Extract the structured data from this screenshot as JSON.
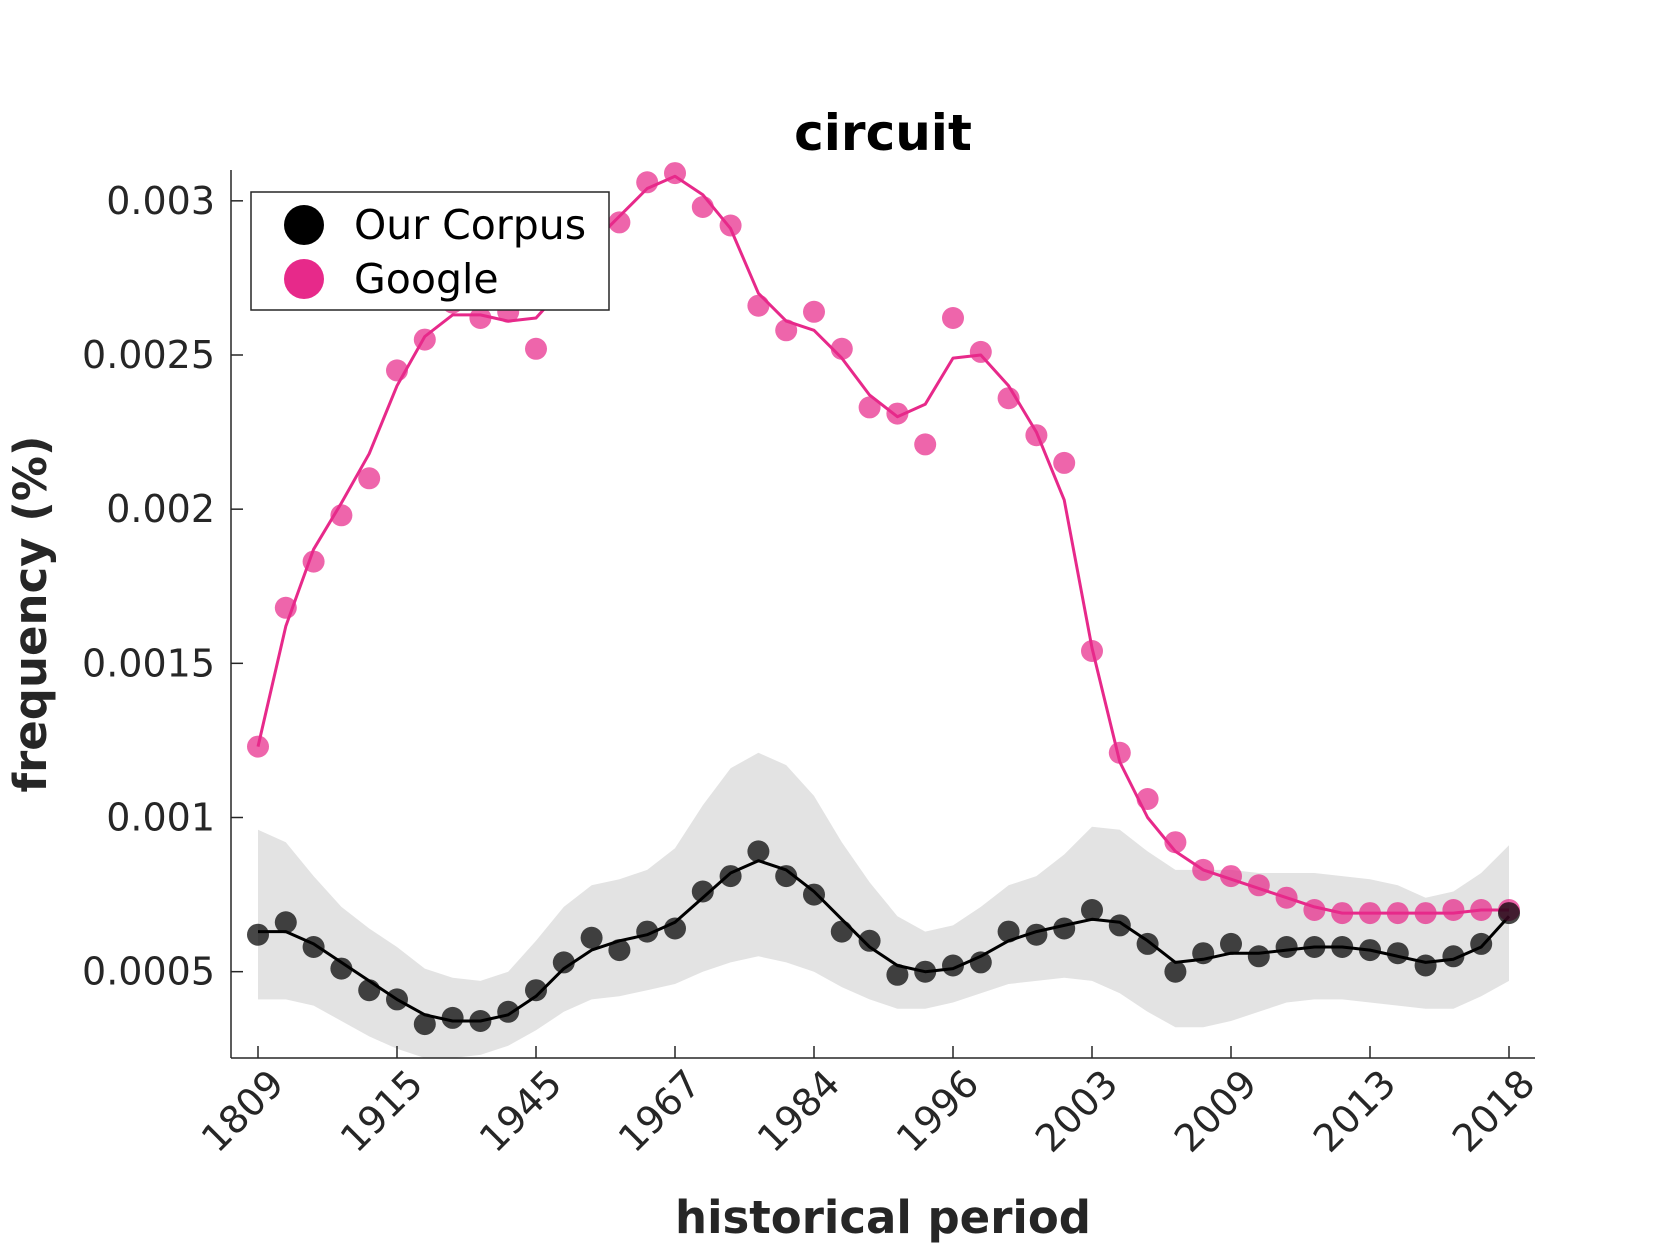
{
  "chart_data": {
    "type": "line",
    "title": "circuit",
    "xlabel": "historical period",
    "ylabel": "frequency (%)",
    "x_tick_labels": [
      "1809",
      "1915",
      "1945",
      "1967",
      "1984",
      "1996",
      "2003",
      "2009",
      "2013",
      "2018"
    ],
    "y_ticks": [
      0.0005,
      0.001,
      0.0015,
      0.002,
      0.0025,
      0.003
    ],
    "y_tick_labels": [
      "0.0005",
      "0.001",
      "0.0015",
      "0.002",
      "0.0025",
      "0.003"
    ],
    "ylim": [
      0.00022,
      0.0031
    ],
    "grid": false,
    "legend_position": "top-left",
    "series": [
      {
        "name": "Our Corpus",
        "color": "#000000",
        "points": [
          0.00062,
          0.00066,
          0.00058,
          0.00051,
          0.00044,
          0.00041,
          0.00033,
          0.00035,
          0.00034,
          0.00037,
          0.00044,
          0.00053,
          0.00061,
          0.00057,
          0.00063,
          0.00064,
          0.00076,
          0.00081,
          0.00089,
          0.00081,
          0.00075,
          0.00063,
          0.0006,
          0.00049,
          0.0005,
          0.00052,
          0.00053,
          0.00063,
          0.00062,
          0.00064,
          0.0007,
          0.00065,
          0.00059,
          0.0005,
          0.00056,
          0.00059,
          0.00055,
          0.00058,
          0.00058,
          0.00058,
          0.00057,
          0.00056,
          0.00052,
          0.00055,
          0.00059,
          0.00069
        ],
        "smoothed": [
          0.00063,
          0.00063,
          0.00059,
          0.00053,
          0.00047,
          0.00041,
          0.00036,
          0.00034,
          0.00034,
          0.00036,
          0.00042,
          0.00051,
          0.00057,
          0.0006,
          0.00062,
          0.00066,
          0.00074,
          0.00082,
          0.00086,
          0.00083,
          0.00076,
          0.00067,
          0.00058,
          0.00052,
          0.0005,
          0.00051,
          0.00055,
          0.0006,
          0.00063,
          0.00065,
          0.00067,
          0.00066,
          0.0006,
          0.00053,
          0.00054,
          0.00056,
          0.00056,
          0.00057,
          0.00058,
          0.00058,
          0.00057,
          0.00055,
          0.00053,
          0.00054,
          0.00058,
          0.00068
        ],
        "band_upper": [
          0.00096,
          0.00092,
          0.00081,
          0.00071,
          0.00064,
          0.00058,
          0.00051,
          0.00048,
          0.00047,
          0.0005,
          0.0006,
          0.00071,
          0.00078,
          0.0008,
          0.00083,
          0.0009,
          0.00104,
          0.00116,
          0.00121,
          0.00117,
          0.00107,
          0.00092,
          0.00079,
          0.00068,
          0.00063,
          0.00065,
          0.00071,
          0.00078,
          0.00081,
          0.00088,
          0.00097,
          0.00096,
          0.00089,
          0.00083,
          0.00083,
          0.00083,
          0.00082,
          0.00082,
          0.00082,
          0.00081,
          0.0008,
          0.00078,
          0.00074,
          0.00076,
          0.00082,
          0.00091
        ],
        "band_lower": [
          0.00041,
          0.00041,
          0.00039,
          0.00034,
          0.00029,
          0.00025,
          0.00022,
          0.00022,
          0.00023,
          0.00026,
          0.00031,
          0.00037,
          0.00041,
          0.00042,
          0.00044,
          0.00046,
          0.0005,
          0.00053,
          0.00055,
          0.00053,
          0.0005,
          0.00045,
          0.00041,
          0.00038,
          0.00038,
          0.0004,
          0.00043,
          0.00046,
          0.00047,
          0.00048,
          0.00047,
          0.00043,
          0.00037,
          0.00032,
          0.00032,
          0.00034,
          0.00037,
          0.0004,
          0.00041,
          0.00041,
          0.0004,
          0.00039,
          0.00038,
          0.00038,
          0.00042,
          0.00047
        ]
      },
      {
        "name": "Google",
        "color": "#e7298a",
        "points": [
          0.00123,
          0.00168,
          0.00183,
          0.00198,
          0.0021,
          0.00245,
          0.00255,
          0.00267,
          0.00262,
          0.00264,
          0.00252,
          0.00271,
          0.00287,
          0.00293,
          0.00306,
          0.00309,
          0.00298,
          0.00292,
          0.00266,
          0.00258,
          0.00264,
          0.00252,
          0.00233,
          0.00231,
          0.00221,
          0.00262,
          0.00251,
          0.00236,
          0.00224,
          0.00215,
          0.00154,
          0.00121,
          0.00106,
          0.00092,
          0.00083,
          0.00081,
          0.00078,
          0.00074,
          0.0007,
          0.00069,
          0.00069,
          0.00069,
          0.00069,
          0.0007,
          0.0007,
          0.0007
        ],
        "smoothed": [
          0.00123,
          0.00162,
          0.00187,
          0.00202,
          0.00218,
          0.0024,
          0.00256,
          0.00263,
          0.00263,
          0.00261,
          0.00262,
          0.00272,
          0.00286,
          0.00295,
          0.00304,
          0.00308,
          0.00302,
          0.00291,
          0.0027,
          0.00261,
          0.00258,
          0.00249,
          0.00237,
          0.0023,
          0.00234,
          0.00249,
          0.0025,
          0.0024,
          0.00225,
          0.00203,
          0.00155,
          0.00118,
          0.001,
          0.00089,
          0.00083,
          0.0008,
          0.00077,
          0.00074,
          0.00071,
          0.00069,
          0.00069,
          0.00069,
          0.00069,
          0.00069,
          0.0007,
          0.0007
        ]
      }
    ]
  }
}
